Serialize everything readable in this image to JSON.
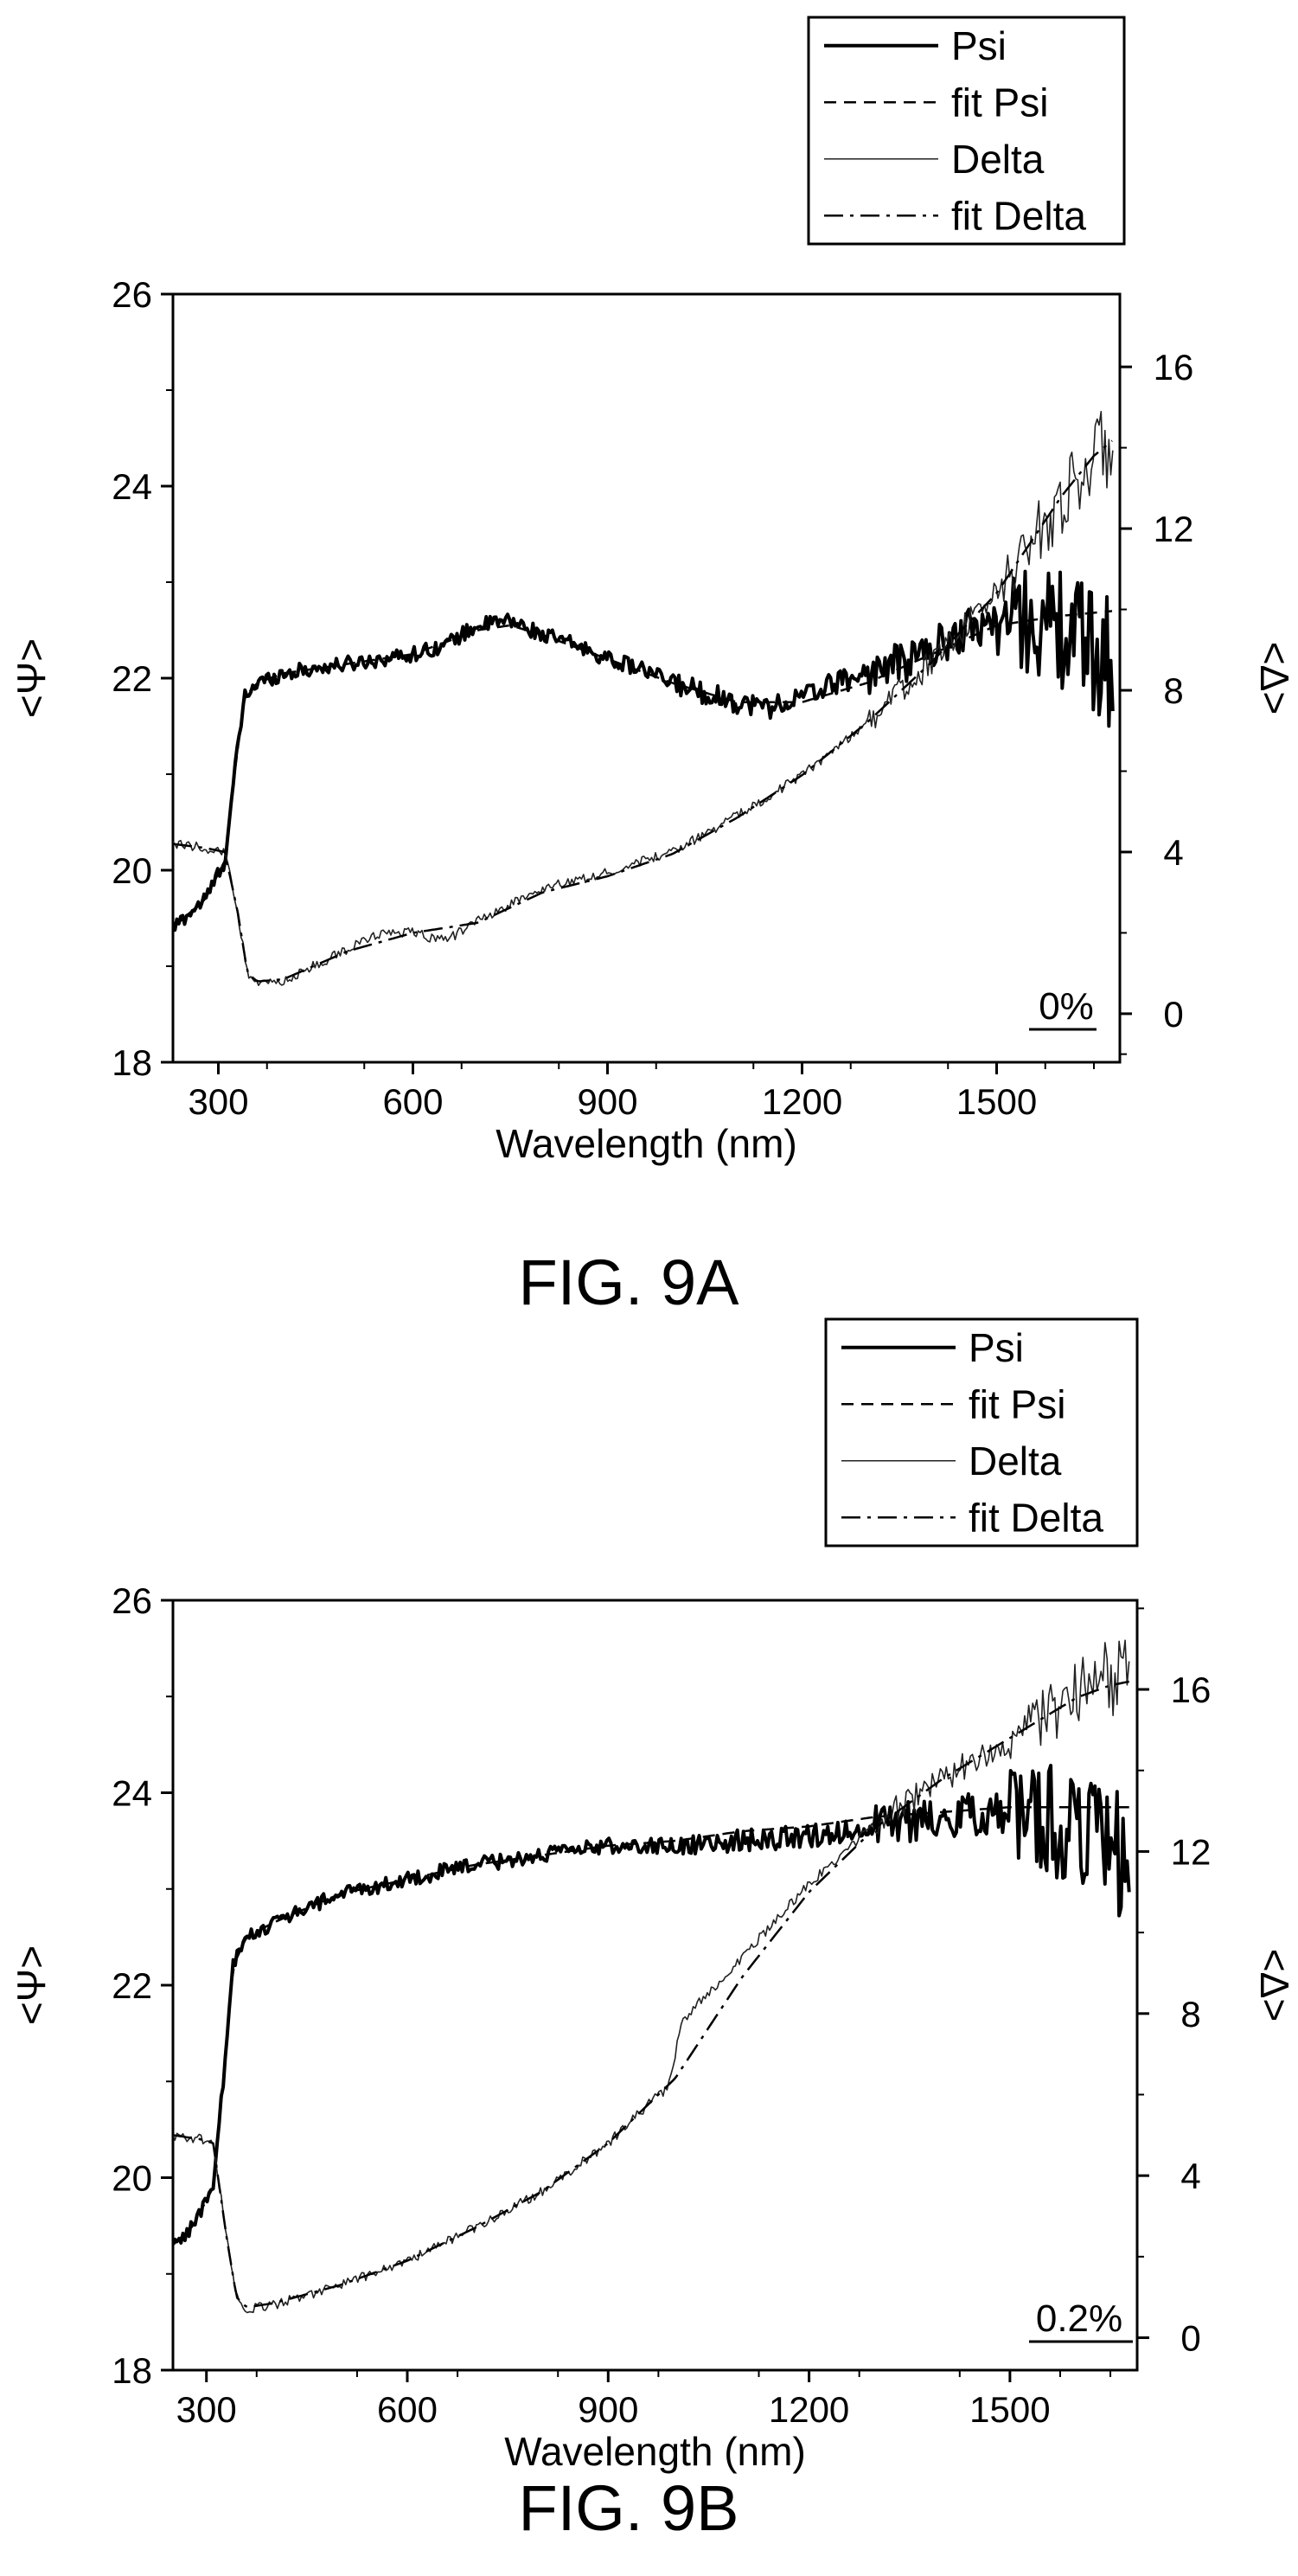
{
  "chart_data": [
    {
      "type": "line",
      "caption": "FIG. 9A",
      "annotation": "0%",
      "xlabel": "Wavelength (nm)",
      "ylabel": "<Ψ>",
      "y2label": "<Δ>",
      "xlim": [
        230,
        1690
      ],
      "ylim": [
        18,
        26
      ],
      "y2lim": [
        -1.2,
        17.8
      ],
      "xticks": [
        300,
        600,
        900,
        1200,
        1500
      ],
      "yticks": [
        18,
        20,
        22,
        24,
        26
      ],
      "y2ticks": [
        0,
        4,
        8,
        12,
        16
      ],
      "grid": false,
      "legend_position": "top-right, above plot",
      "legend": [
        "Psi",
        "fit Psi",
        "Delta",
        "fit Delta"
      ],
      "series": [
        {
          "name": "Psi",
          "axis": "left",
          "style": "solid-thick",
          "noisy": true,
          "x": [
            230,
            280,
            310,
            325,
            340,
            360,
            400,
            500,
            600,
            650,
            700,
            750,
            800,
            850,
            900,
            950,
            1000,
            1050,
            1100,
            1150,
            1200,
            1250,
            1300,
            1350,
            1400,
            1450,
            1500,
            1550,
            1600,
            1650,
            1680
          ],
          "y": [
            19.4,
            19.7,
            20.1,
            21.0,
            21.8,
            21.95,
            22.05,
            22.15,
            22.25,
            22.35,
            22.55,
            22.6,
            22.45,
            22.35,
            22.2,
            22.1,
            21.95,
            21.85,
            21.75,
            21.7,
            21.8,
            21.95,
            22.05,
            22.15,
            22.3,
            22.5,
            22.6,
            22.6,
            22.5,
            22.3,
            22.2
          ]
        },
        {
          "name": "fit Psi",
          "axis": "left",
          "style": "dashed",
          "x": [
            230,
            280,
            310,
            325,
            340,
            360,
            400,
            500,
            600,
            700,
            750,
            800,
            900,
            1000,
            1100,
            1200,
            1300,
            1400,
            1500,
            1600,
            1680
          ],
          "y": [
            19.4,
            19.7,
            20.1,
            21.0,
            21.8,
            21.95,
            22.05,
            22.15,
            22.25,
            22.5,
            22.55,
            22.45,
            22.2,
            21.95,
            21.75,
            21.75,
            21.95,
            22.25,
            22.55,
            22.65,
            22.7
          ]
        },
        {
          "name": "Delta",
          "axis": "right",
          "style": "solid-thin",
          "noisy": true,
          "x": [
            230,
            280,
            310,
            330,
            345,
            360,
            400,
            450,
            500,
            550,
            600,
            650,
            700,
            750,
            800,
            900,
            1000,
            1100,
            1200,
            1300,
            1400,
            1500,
            1550,
            1600,
            1650,
            1680
          ],
          "y": [
            4.2,
            4.1,
            4.0,
            2.5,
            1.0,
            0.7,
            0.8,
            1.2,
            1.6,
            2.0,
            2.0,
            1.8,
            2.3,
            2.7,
            3.1,
            3.5,
            4.0,
            4.9,
            5.9,
            7.2,
            8.7,
            10.4,
            11.6,
            12.7,
            13.8,
            14.1
          ]
        },
        {
          "name": "fit Delta",
          "axis": "right",
          "style": "dash-dot",
          "x": [
            230,
            280,
            310,
            330,
            345,
            360,
            400,
            500,
            600,
            700,
            800,
            900,
            1000,
            1100,
            1200,
            1300,
            1400,
            1500,
            1550,
            1600,
            1650,
            1680
          ],
          "y": [
            4.2,
            4.1,
            4.0,
            2.5,
            1.0,
            0.8,
            0.85,
            1.55,
            2.0,
            2.25,
            3.0,
            3.4,
            3.95,
            4.85,
            5.9,
            7.2,
            8.7,
            10.4,
            11.6,
            12.8,
            13.8,
            14.2
          ]
        }
      ]
    },
    {
      "type": "line",
      "caption": "FIG. 9B",
      "annotation": "0.2%",
      "xlabel": "Wavelength (nm)",
      "ylabel": "<Ψ>",
      "y2label": "<Δ>",
      "xlim": [
        250,
        1690
      ],
      "ylim": [
        18,
        26
      ],
      "y2lim": [
        -0.8,
        18.2
      ],
      "xticks": [
        300,
        600,
        900,
        1200,
        1500
      ],
      "yticks": [
        18,
        20,
        22,
        24,
        26
      ],
      "y2ticks": [
        0,
        4,
        8,
        12,
        16
      ],
      "grid": false,
      "legend_position": "top-right, above plot",
      "legend": [
        "Psi",
        "fit Psi",
        "Delta",
        "fit Delta"
      ],
      "series": [
        {
          "name": "Psi",
          "axis": "left",
          "style": "solid-thick",
          "noisy": true,
          "x": [
            250,
            280,
            310,
            325,
            340,
            360,
            400,
            500,
            600,
            700,
            800,
            900,
            1000,
            1100,
            1200,
            1300,
            1400,
            1500,
            1550,
            1600,
            1650,
            1680
          ],
          "y": [
            19.3,
            19.5,
            19.9,
            21.0,
            22.2,
            22.5,
            22.65,
            22.95,
            23.1,
            23.25,
            23.35,
            23.45,
            23.45,
            23.5,
            23.55,
            23.65,
            23.75,
            23.8,
            23.75,
            23.6,
            23.4,
            23.3
          ]
        },
        {
          "name": "fit Psi",
          "axis": "left",
          "style": "dashed",
          "x": [
            250,
            280,
            310,
            325,
            340,
            360,
            400,
            500,
            600,
            700,
            800,
            900,
            1000,
            1100,
            1200,
            1300,
            1400,
            1500,
            1600,
            1680
          ],
          "y": [
            19.3,
            19.5,
            19.9,
            21.0,
            22.2,
            22.5,
            22.65,
            22.95,
            23.1,
            23.25,
            23.35,
            23.45,
            23.5,
            23.6,
            23.65,
            23.75,
            23.8,
            23.85,
            23.85,
            23.85
          ]
        },
        {
          "name": "Delta",
          "axis": "right",
          "style": "solid-thin",
          "noisy": true,
          "x": [
            250,
            290,
            310,
            330,
            345,
            360,
            400,
            500,
            600,
            700,
            800,
            900,
            950,
            990,
            1000,
            1010,
            1100,
            1200,
            1300,
            1400,
            1500,
            1550,
            1600,
            1650,
            1680
          ],
          "y": [
            5.0,
            4.9,
            4.8,
            2.5,
            1.0,
            0.7,
            0.8,
            1.3,
            1.9,
            2.7,
            3.6,
            4.8,
            5.6,
            6.2,
            7.0,
            7.8,
            9.4,
            11.2,
            12.7,
            13.8,
            14.8,
            15.3,
            15.8,
            16.3,
            16.5
          ]
        },
        {
          "name": "fit Delta",
          "axis": "right",
          "style": "dash-dot",
          "x": [
            250,
            290,
            310,
            330,
            345,
            360,
            400,
            500,
            600,
            700,
            800,
            900,
            950,
            1000,
            1100,
            1200,
            1300,
            1400,
            1500,
            1550,
            1600,
            1650,
            1680
          ],
          "y": [
            5.0,
            4.9,
            4.8,
            2.5,
            1.0,
            0.75,
            0.85,
            1.3,
            1.9,
            2.7,
            3.6,
            4.8,
            5.6,
            6.4,
            8.9,
            11.0,
            12.6,
            13.8,
            14.8,
            15.3,
            15.8,
            16.1,
            16.2
          ]
        }
      ]
    }
  ]
}
